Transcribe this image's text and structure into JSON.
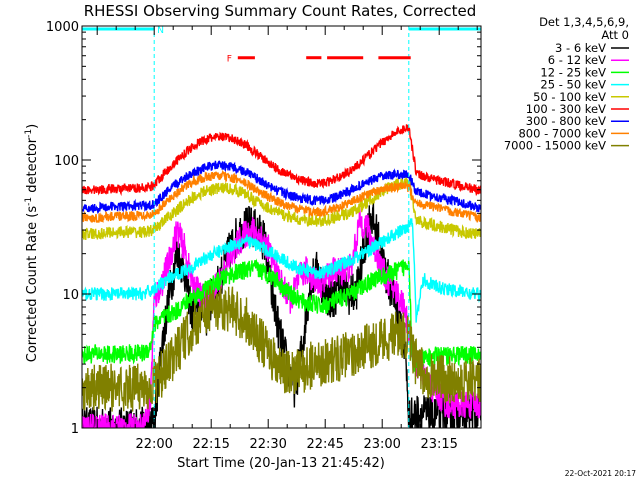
{
  "chart_data": {
    "type": "line",
    "title": "RHESSI Observing Summary Count Rates, Corrected",
    "xlabel": "Start Time (20-Jan-13 21:45:42)",
    "ylabel_main": "Corrected Count Rate (s",
    "ylabel_sup1": "-1",
    "ylabel_mid": " detector",
    "ylabel_sup2": "-1",
    "ylabel_end": ")",
    "y_scale": "log",
    "ylim": [
      1,
      1000
    ],
    "xlim_minutes": [
      -4,
      101
    ],
    "y_ticks": [
      {
        "value": 1,
        "label": "1"
      },
      {
        "value": 10,
        "label": "10"
      },
      {
        "value": 100,
        "label": "100"
      },
      {
        "value": 1000,
        "label": "1000"
      }
    ],
    "x_ticks": [
      {
        "minute": 15,
        "label": "22:00"
      },
      {
        "minute": 30,
        "label": "22:15"
      },
      {
        "minute": 45,
        "label": "22:30"
      },
      {
        "minute": 60,
        "label": "22:45"
      },
      {
        "minute": 75,
        "label": "23:00"
      },
      {
        "minute": 90,
        "label": "23:15"
      }
    ],
    "legend_header": [
      "Det 1,3,4,5,6,9,",
      "Att 0"
    ],
    "footer_date": "22-Oct-2021 20:17",
    "flags": {
      "night": {
        "label": "N",
        "color": "#00ffff",
        "segments": [
          [
            -4,
            15
          ],
          [
            82,
            101
          ]
        ],
        "level": 950
      },
      "flare": {
        "label": "F",
        "color": "#ff0000",
        "segments": [
          [
            37,
            41.5
          ],
          [
            55,
            59
          ],
          [
            60.5,
            70
          ],
          [
            74,
            82.5
          ]
        ],
        "level": 580
      },
      "vlines": [
        15,
        82,
        101
      ]
    },
    "series": [
      {
        "name": "3 - 6 keV",
        "color": "#000000",
        "x": [
          -4,
          0,
          4,
          8,
          12,
          14,
          15,
          17,
          19,
          21,
          23,
          25,
          27,
          28,
          29,
          30,
          32,
          34,
          36,
          38,
          40,
          42,
          44,
          46,
          48,
          50,
          52,
          54,
          56,
          58,
          60,
          62,
          64,
          66,
          68,
          70,
          72,
          74,
          76,
          78,
          80,
          81,
          82,
          83,
          85,
          88,
          92,
          96,
          100
        ],
        "y": [
          1,
          1,
          1,
          1,
          1,
          1,
          1.1,
          4,
          10,
          20,
          15,
          7,
          8,
          10,
          6,
          9,
          12,
          18,
          25,
          30,
          32,
          30,
          25,
          10,
          5,
          3,
          2,
          4,
          12,
          15,
          10,
          9,
          12,
          10,
          10,
          20,
          40,
          25,
          14,
          10,
          5,
          4,
          1.2,
          1.2,
          1.3,
          1.2,
          1.3,
          1.3,
          1.3
        ],
        "noise": 0.16
      },
      {
        "name": "6 - 12 keV",
        "color": "#ff00ff",
        "x": [
          -4,
          2,
          8,
          12,
          14,
          15,
          17,
          19,
          21,
          23,
          25,
          27,
          29,
          31,
          33,
          35,
          37,
          39,
          41,
          43,
          45,
          47,
          49,
          51,
          53,
          55,
          57,
          59,
          61,
          63,
          65,
          67,
          69,
          71,
          73,
          75,
          77,
          79,
          81,
          82,
          84,
          88,
          92,
          96,
          100
        ],
        "y": [
          1,
          1,
          1,
          1,
          1.5,
          9,
          12,
          18,
          30,
          22,
          12,
          10,
          9,
          11,
          14,
          18,
          24,
          28,
          30,
          27,
          22,
          15,
          11,
          9,
          13,
          15,
          13,
          12,
          14,
          15,
          15,
          16,
          35,
          32,
          22,
          15,
          12,
          10,
          8,
          5,
          3,
          2,
          1.5,
          1.5,
          1.5
        ],
        "noise": 0.11
      },
      {
        "name": "12 - 25 keV",
        "color": "#00ff00",
        "x": [
          -4,
          0,
          4,
          8,
          12,
          14,
          15,
          17,
          19,
          21,
          23,
          25,
          27,
          29,
          31,
          33,
          35,
          37,
          39,
          41,
          43,
          45,
          47,
          49,
          51,
          53,
          55,
          57,
          59,
          61,
          63,
          65,
          67,
          69,
          71,
          73,
          75,
          77,
          79,
          81,
          82,
          83,
          86,
          90,
          94,
          98,
          100
        ],
        "y": [
          3.5,
          3.6,
          3.5,
          3.6,
          3.6,
          4,
          6,
          6.5,
          7,
          7.5,
          8.5,
          9.5,
          10,
          11,
          12,
          13,
          14,
          14.5,
          15,
          15.5,
          15,
          14,
          13,
          11,
          10,
          9,
          8.5,
          8.5,
          8,
          8.5,
          9,
          9.5,
          10,
          11,
          12,
          13,
          13.5,
          14,
          15,
          16,
          18,
          3,
          3.3,
          3.5,
          3.5,
          3.5,
          3.5
        ],
        "noise": 0.07
      },
      {
        "name": "25 - 50 keV",
        "color": "#00ffff",
        "x": [
          -4,
          0,
          4,
          8,
          12,
          14,
          15,
          17,
          19,
          21,
          23,
          25,
          27,
          29,
          31,
          33,
          35,
          37,
          39,
          41,
          43,
          45,
          47,
          49,
          51,
          53,
          55,
          57,
          59,
          61,
          63,
          65,
          67,
          69,
          71,
          73,
          75,
          77,
          79,
          81,
          82,
          83,
          84,
          85,
          86,
          87,
          88,
          90,
          92,
          94,
          96,
          98,
          100
        ],
        "y": [
          10,
          10,
          10,
          10,
          10,
          10.5,
          11,
          12,
          13,
          14,
          15,
          16,
          17.5,
          19,
          20,
          21.5,
          23,
          24,
          25,
          24,
          22.5,
          21,
          19.5,
          18,
          16.5,
          15.5,
          15,
          14.5,
          14.5,
          15,
          16,
          17,
          18,
          19.5,
          21,
          22.5,
          24.5,
          26.5,
          28.5,
          31,
          33,
          36,
          6,
          10,
          13,
          12,
          12,
          11,
          11,
          10.5,
          10.5,
          10,
          10
        ],
        "noise": 0.05
      },
      {
        "name": "50 - 100 keV",
        "color": "#ffff00",
        "stroke": "#c8c800",
        "x": [
          -4,
          0,
          4,
          8,
          12,
          14,
          15,
          17,
          19,
          21,
          23,
          25,
          27,
          29,
          31,
          33,
          35,
          37,
          39,
          41,
          43,
          45,
          47,
          49,
          51,
          53,
          55,
          57,
          59,
          61,
          63,
          65,
          67,
          69,
          71,
          73,
          75,
          77,
          79,
          81,
          82,
          84,
          88,
          92,
          96,
          100
        ],
        "y": [
          28,
          28,
          29,
          29,
          29,
          29.5,
          30,
          34,
          38,
          42,
          47,
          52,
          56,
          59,
          61,
          62,
          61,
          59,
          56,
          51,
          47,
          44,
          41,
          39,
          37,
          36,
          35.5,
          35,
          35,
          36,
          37.5,
          39,
          41,
          44,
          48,
          53,
          58,
          62,
          66,
          68,
          69,
          35,
          33,
          31,
          29,
          28
        ],
        "noise": 0.045
      },
      {
        "name": "100 - 300 keV",
        "color": "#ff0000",
        "x": [
          -4,
          0,
          4,
          8,
          12,
          14,
          15,
          17,
          19,
          21,
          23,
          25,
          27,
          29,
          31,
          33,
          35,
          37,
          39,
          41,
          43,
          45,
          47,
          49,
          51,
          53,
          55,
          57,
          59,
          61,
          63,
          65,
          67,
          69,
          71,
          73,
          75,
          77,
          79,
          81,
          82,
          84,
          88,
          92,
          96,
          100
        ],
        "y": [
          60,
          60,
          61,
          61,
          62,
          63,
          66,
          76,
          87,
          99,
          112,
          125,
          136,
          144,
          148,
          148,
          145,
          139,
          130,
          118,
          106,
          96,
          87,
          81,
          76,
          72,
          69,
          67,
          67,
          69,
          73,
          78,
          85,
          94,
          106,
          120,
          135,
          150,
          162,
          172,
          176,
          80,
          72,
          68,
          64,
          60
        ],
        "noise": 0.035
      },
      {
        "name": "300 - 800 keV",
        "color": "#0000ff",
        "x": [
          -4,
          0,
          4,
          8,
          12,
          14,
          15,
          17,
          19,
          21,
          23,
          25,
          27,
          29,
          31,
          33,
          35,
          37,
          39,
          41,
          43,
          45,
          47,
          49,
          51,
          53,
          55,
          57,
          59,
          61,
          63,
          65,
          67,
          69,
          71,
          73,
          75,
          77,
          79,
          81,
          82,
          84,
          88,
          92,
          96,
          100
        ],
        "y": [
          44,
          44,
          45,
          45,
          46,
          46,
          47,
          53,
          60,
          67,
          74,
          80,
          85,
          89,
          91,
          91,
          89,
          86,
          82,
          76,
          70,
          64,
          60,
          57,
          54,
          52,
          51,
          50,
          50,
          51,
          53,
          56,
          60,
          64,
          68,
          72,
          75,
          77,
          78,
          78,
          77,
          58,
          54,
          51,
          48,
          44
        ],
        "noise": 0.035
      },
      {
        "name": "800 - 7000 keV",
        "color": "#ff8000",
        "x": [
          -4,
          0,
          4,
          8,
          12,
          14,
          15,
          17,
          19,
          21,
          23,
          25,
          27,
          29,
          31,
          33,
          35,
          37,
          39,
          41,
          43,
          45,
          47,
          49,
          51,
          53,
          55,
          57,
          59,
          61,
          63,
          65,
          67,
          69,
          71,
          73,
          75,
          77,
          79,
          81,
          82,
          84,
          88,
          92,
          96,
          100
        ],
        "y": [
          37,
          37,
          38,
          38,
          39,
          39,
          40,
          45,
          51,
          57,
          63,
          68,
          72,
          75,
          76,
          76,
          74,
          71,
          67,
          62,
          57,
          53,
          50,
          47,
          45,
          43,
          42,
          41,
          41,
          42,
          44,
          46,
          49,
          52,
          55,
          58,
          60,
          62,
          63,
          63,
          62,
          48,
          45,
          42,
          40,
          37
        ],
        "noise": 0.035
      },
      {
        "name": "7000 - 15000 keV",
        "color": "#808000",
        "x": [
          -4,
          0,
          4,
          8,
          12,
          14,
          15,
          17,
          19,
          21,
          23,
          25,
          27,
          29,
          31,
          33,
          35,
          37,
          39,
          41,
          43,
          45,
          47,
          49,
          51,
          53,
          55,
          57,
          59,
          61,
          63,
          65,
          67,
          69,
          71,
          73,
          75,
          77,
          79,
          81,
          82,
          84,
          86,
          88,
          92,
          96,
          100
        ],
        "y": [
          2,
          2,
          2,
          2,
          2,
          2,
          2.2,
          2.5,
          3,
          3.8,
          4.6,
          5.5,
          6.5,
          7.5,
          8,
          8,
          7.8,
          7.2,
          6.5,
          5.5,
          4.5,
          3.6,
          3,
          2.6,
          2.5,
          2.6,
          2.8,
          3,
          3.1,
          3.2,
          3.3,
          3.4,
          3.6,
          3.8,
          4,
          4.3,
          4.6,
          4.8,
          5,
          5,
          4.5,
          3,
          2.5,
          2.5,
          2.3,
          2.3,
          2.2
        ],
        "noise": 0.18
      }
    ]
  }
}
